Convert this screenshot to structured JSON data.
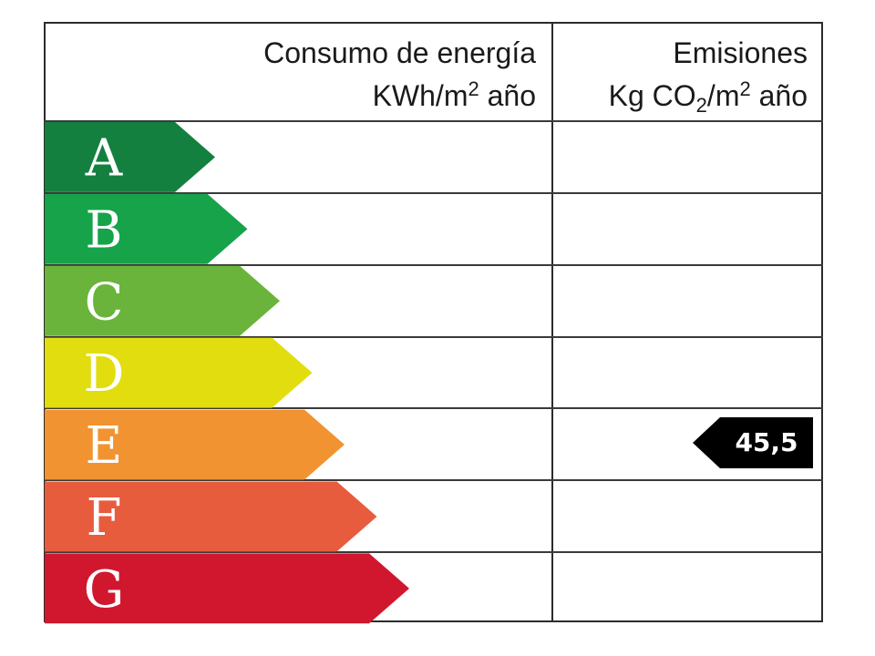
{
  "header": {
    "energy": {
      "line1": "Consumo de energía",
      "line2_pre": "KWh/m",
      "line2_sup": "2",
      "line2_post": " año"
    },
    "emissions": {
      "line1": "Emisiones",
      "line2_pre": "Kg CO",
      "line2_sub": "2",
      "line2_mid": "/m",
      "line2_sup": "2",
      "line2_post": " año"
    }
  },
  "ratings": [
    {
      "letter": "A",
      "color": "#138040"
    },
    {
      "letter": "B",
      "color": "#16a34a"
    },
    {
      "letter": "C",
      "color": "#6ab43c"
    },
    {
      "letter": "D",
      "color": "#e2dd0e"
    },
    {
      "letter": "E",
      "color": "#f29331"
    },
    {
      "letter": "F",
      "color": "#e85c3e"
    },
    {
      "letter": "G",
      "color": "#d0172e"
    }
  ],
  "marker": {
    "value": "45,5",
    "rating": "E",
    "column": "emissions",
    "color": "#000000"
  }
}
